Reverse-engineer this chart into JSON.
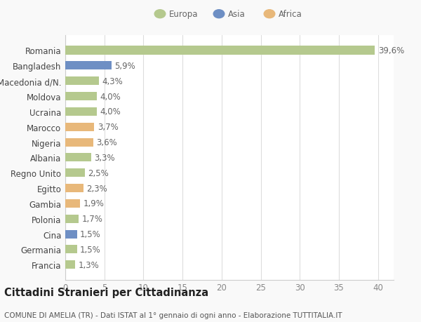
{
  "countries": [
    "Francia",
    "Germania",
    "Cina",
    "Polonia",
    "Gambia",
    "Egitto",
    "Regno Unito",
    "Albania",
    "Nigeria",
    "Marocco",
    "Ucraina",
    "Moldova",
    "Macedonia d/N.",
    "Bangladesh",
    "Romania"
  ],
  "values": [
    1.3,
    1.5,
    1.5,
    1.7,
    1.9,
    2.3,
    2.5,
    3.3,
    3.6,
    3.7,
    4.0,
    4.0,
    4.3,
    5.9,
    39.6
  ],
  "labels": [
    "1,3%",
    "1,5%",
    "1,5%",
    "1,7%",
    "1,9%",
    "2,3%",
    "2,5%",
    "3,3%",
    "3,6%",
    "3,7%",
    "4,0%",
    "4,0%",
    "4,3%",
    "5,9%",
    "39,6%"
  ],
  "continents": [
    "Europa",
    "Europa",
    "Asia",
    "Europa",
    "Africa",
    "Africa",
    "Europa",
    "Europa",
    "Africa",
    "Africa",
    "Europa",
    "Europa",
    "Europa",
    "Asia",
    "Europa"
  ],
  "colors": {
    "Europa": "#b5c98e",
    "Asia": "#6e8fc4",
    "Africa": "#e8b87a"
  },
  "xlim": [
    0,
    42
  ],
  "xticks": [
    0,
    5,
    10,
    15,
    20,
    25,
    30,
    35,
    40
  ],
  "title": "Cittadini Stranieri per Cittadinanza",
  "subtitle": "COMUNE DI AMELIA (TR) - Dati ISTAT al 1° gennaio di ogni anno - Elaborazione TUTTITALIA.IT",
  "background_color": "#f9f9f9",
  "plot_bg_color": "#ffffff",
  "grid_color": "#dddddd",
  "bar_height": 0.55,
  "label_fontsize": 8.5,
  "tick_fontsize": 8.5,
  "title_fontsize": 10.5,
  "subtitle_fontsize": 7.5
}
